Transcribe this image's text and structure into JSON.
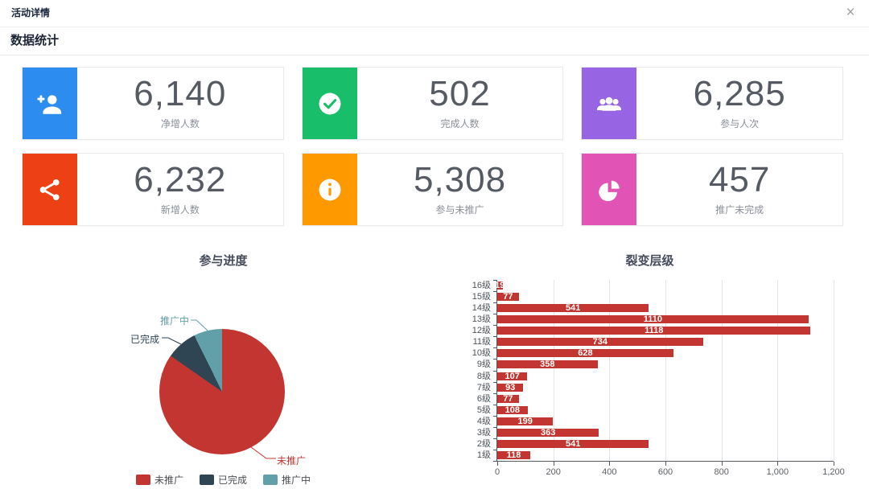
{
  "modal": {
    "title": "活动详情",
    "close_label": "×"
  },
  "section": {
    "title": "数据统计"
  },
  "stats": {
    "cards": [
      {
        "value": "6,140",
        "label": "净增人数",
        "icon": "user-add-icon",
        "color": "#2d8cf0"
      },
      {
        "value": "502",
        "label": "完成人数",
        "icon": "check-circle-icon",
        "color": "#19be6b"
      },
      {
        "value": "6,285",
        "label": "参与人次",
        "icon": "users-group-icon",
        "color": "#9764e3"
      },
      {
        "value": "6,232",
        "label": "新增人数",
        "icon": "share-icon",
        "color": "#ed4014"
      },
      {
        "value": "5,308",
        "label": "参与未推广",
        "icon": "info-circle-icon",
        "color": "#ff9900"
      },
      {
        "value": "457",
        "label": "推广未完成",
        "icon": "pie-chart-icon",
        "color": "#e153b4"
      }
    ]
  },
  "chart_data": [
    {
      "type": "pie",
      "title": "参与进度",
      "slices": [
        {
          "label": "未推广",
          "value": 5308,
          "color": "#c23531"
        },
        {
          "label": "已完成",
          "value": 502,
          "color": "#2f4554"
        },
        {
          "label": "推广中",
          "value": 457,
          "color": "#61a0a8"
        }
      ],
      "legend": [
        "未推广",
        "已完成",
        "推广中"
      ],
      "legend_position": "bottom",
      "start_angle_deg": 90,
      "direction": "clockwise"
    },
    {
      "type": "bar",
      "title": "裂变层级",
      "orientation": "horizontal",
      "row_order": "top-to-bottom",
      "categories_top_to_bottom": [
        "16级",
        "15级",
        "14级",
        "13级",
        "12级",
        "11级",
        "10级",
        "9级",
        "8级",
        "7级",
        "6级",
        "5级",
        "4级",
        "3级",
        "2级",
        "1级"
      ],
      "values_top_to_bottom": [
        19,
        77,
        541,
        1110,
        1118,
        734,
        628,
        358,
        107,
        93,
        77,
        108,
        199,
        363,
        541,
        118
      ],
      "bar_color": "#c23531",
      "value_label_color": "#ffffff",
      "xlabel": "",
      "ylabel": "",
      "xlim": [
        0,
        1200
      ],
      "x_ticks": [
        "0",
        "200",
        "400",
        "600",
        "800",
        "1,000",
        "1,200"
      ],
      "grid": true
    }
  ]
}
